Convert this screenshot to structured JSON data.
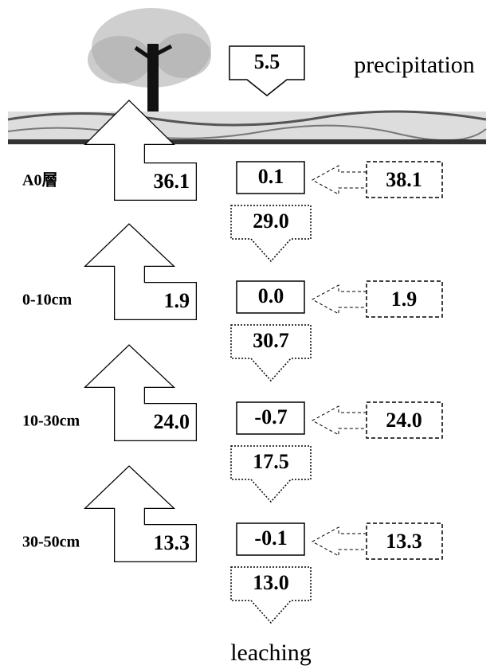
{
  "precipitation": {
    "value": "5.5",
    "label": "precipitation"
  },
  "layers": [
    {
      "label": "A0層",
      "uptake": "36.1",
      "storage": "0.1",
      "input": "38.1",
      "outflow": "29.0"
    },
    {
      "label": "0-10cm",
      "uptake": "1.9",
      "storage": "0.0",
      "input": "1.9",
      "outflow": "30.7"
    },
    {
      "label": "10-30cm",
      "uptake": "24.0",
      "storage": "-0.7",
      "input": "24.0",
      "outflow": "17.5"
    },
    {
      "label": "30-50cm",
      "uptake": "13.3",
      "storage": "-0.1",
      "input": "13.3",
      "outflow": "13.0"
    }
  ],
  "leaching": "leaching"
}
